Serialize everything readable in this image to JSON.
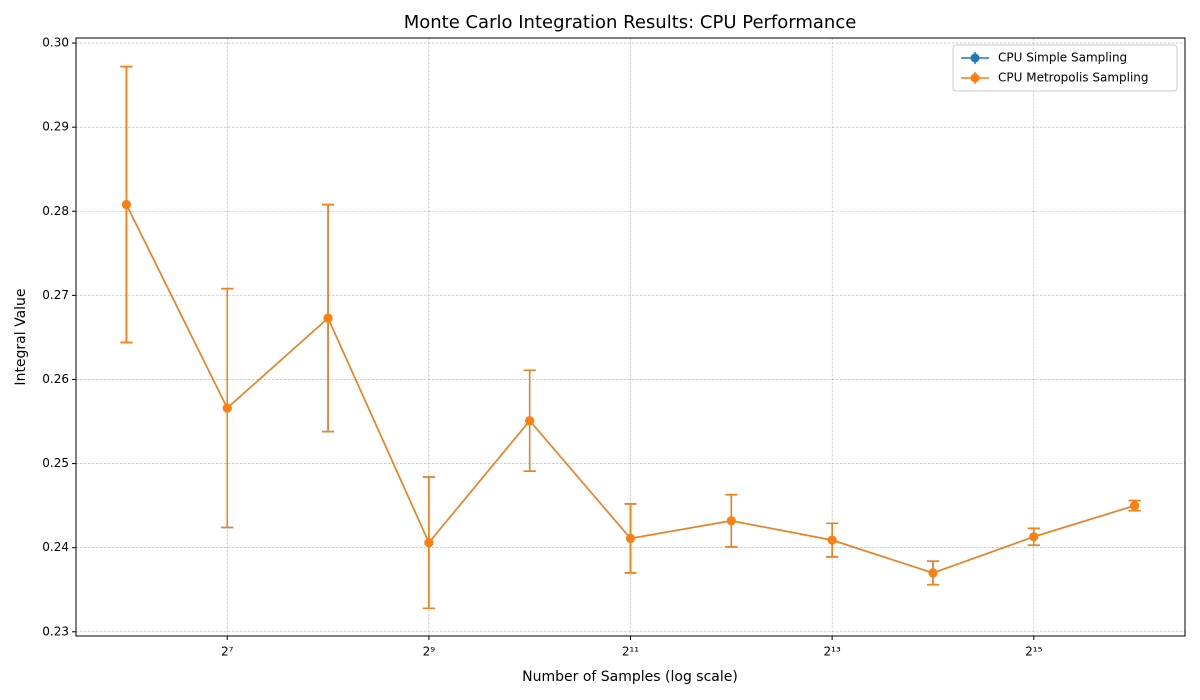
{
  "chart_data": {
    "type": "errorbar-line",
    "title": "Monte Carlo Integration Results: CPU Performance",
    "x_label": "Number of Samples (log scale)",
    "y_label": "Integral Value",
    "x": [
      64,
      128,
      256,
      512,
      1024,
      2048,
      4096,
      8192,
      16384,
      32768,
      65536
    ],
    "series": [
      {
        "name": "CPU Simple Sampling",
        "color": "#1f77b4",
        "values": [
          0.2808,
          0.2566,
          0.2673,
          0.2406,
          0.2551,
          0.2411,
          0.2432,
          0.2409,
          0.237,
          0.2413,
          0.245
        ],
        "errors": [
          0.0164,
          0.0142,
          0.0135,
          0.0078,
          0.006,
          0.0041,
          0.0031,
          0.002,
          0.0014,
          0.001,
          0.0006
        ]
      },
      {
        "name": "CPU Metropolis Sampling",
        "color": "#ff7f0e",
        "values": [
          0.2808,
          0.2566,
          0.2673,
          0.2406,
          0.2551,
          0.2411,
          0.2432,
          0.2409,
          0.237,
          0.2413,
          0.245
        ],
        "errors": [
          0.0164,
          0.0142,
          0.0135,
          0.0078,
          0.006,
          0.0041,
          0.0031,
          0.002,
          0.0014,
          0.001,
          0.0006
        ]
      }
    ],
    "xscale": "log",
    "xlim": [
      45.25,
      92681.9
    ],
    "xticks": [
      {
        "value": 128,
        "label": "2⁷"
      },
      {
        "value": 512,
        "label": "2⁹"
      },
      {
        "value": 2048,
        "label": "2¹¹"
      },
      {
        "value": 8192,
        "label": "2¹³"
      },
      {
        "value": 32768,
        "label": "2¹⁵"
      }
    ],
    "ylim": [
      0.2295,
      0.3006
    ],
    "yticks": [
      0.23,
      0.24,
      0.25,
      0.26,
      0.27,
      0.28,
      0.29,
      {
        "value": 0.3,
        "label": "0.30"
      }
    ],
    "grid": true,
    "legend": "upper right"
  }
}
